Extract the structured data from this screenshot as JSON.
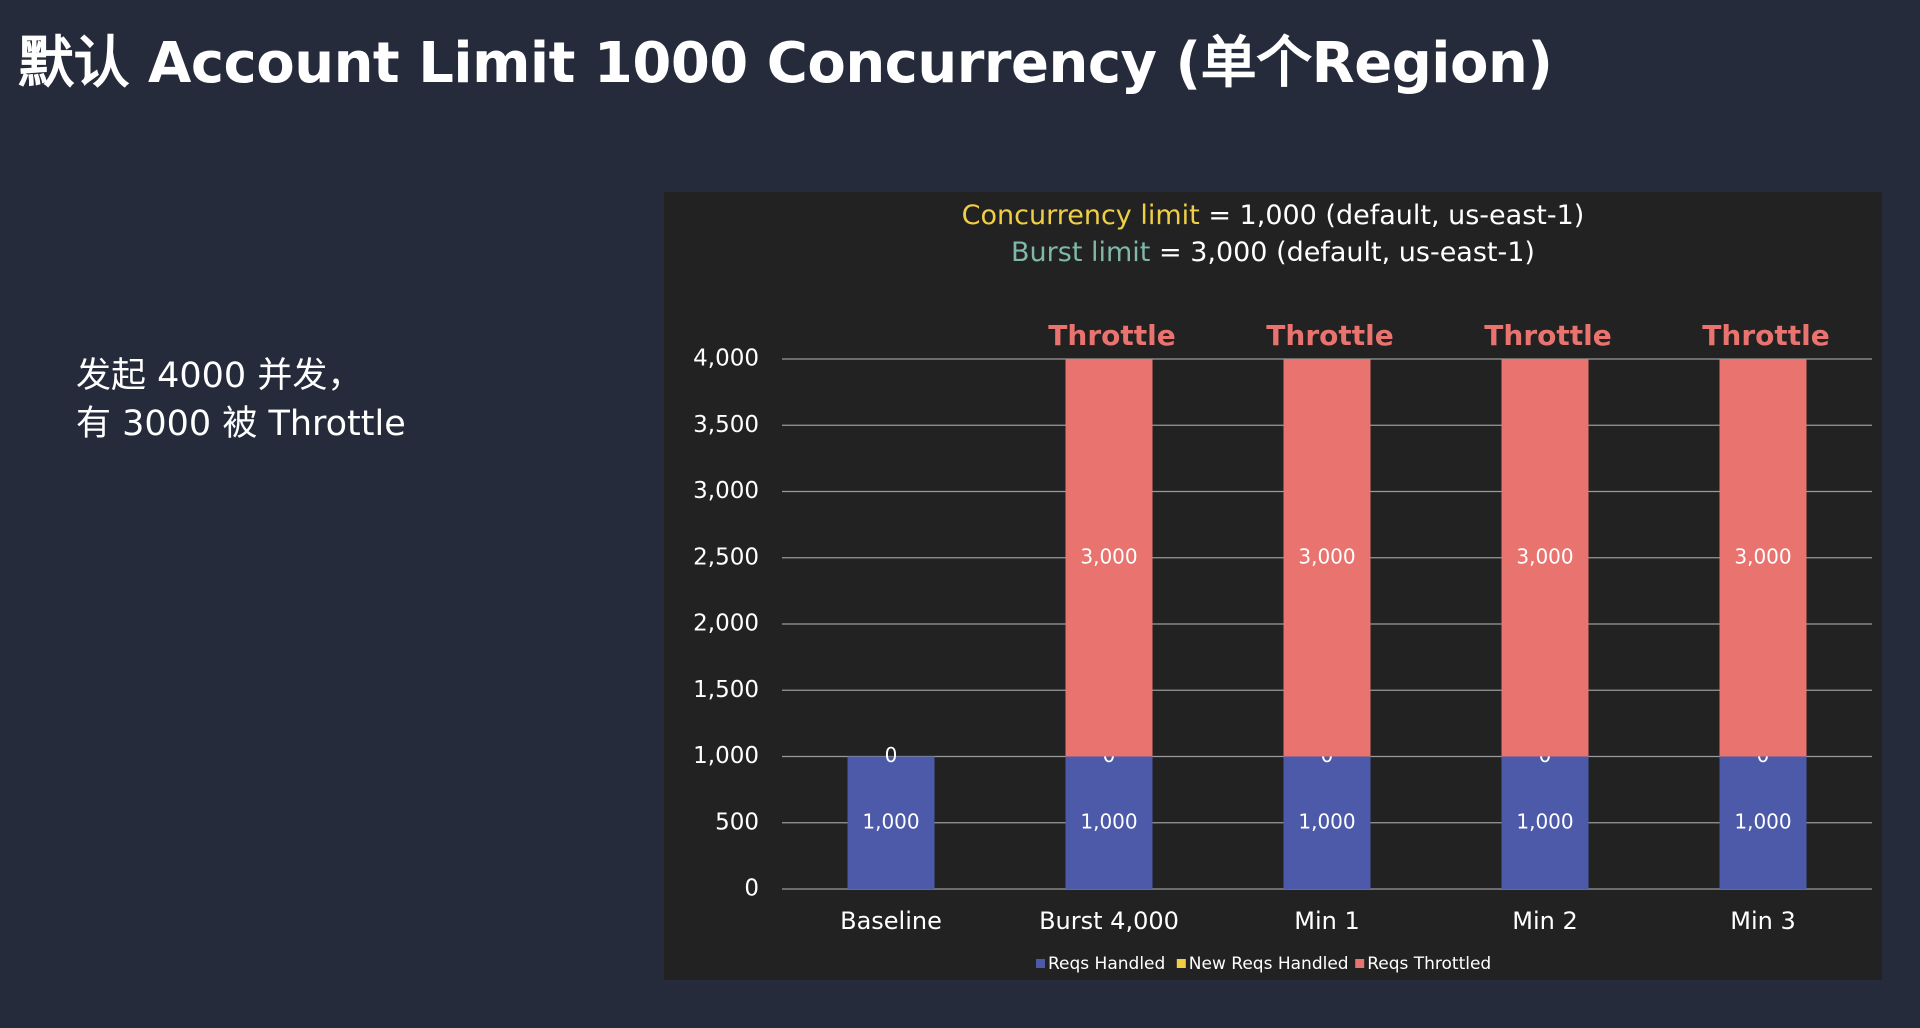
{
  "slide": {
    "title": "默认 Account Limit 1000 Concurrency (单个Region)",
    "bullet_line1": "发起 4000 并发，",
    "bullet_line2": "有 3000 被 Throttle"
  },
  "colors": {
    "background": "#252b3b",
    "panel": "#222222",
    "handled": "#4c5aa9",
    "new_handled": "#f0cf45",
    "throttled": "#e9736f",
    "concurrency_text": "#f0cf45",
    "burst_text": "#7fb7a8"
  },
  "chart_data": {
    "type": "bar",
    "stacked": true,
    "header_line1_highlight": "Concurrency limit",
    "header_line1_rest": " = 1,000 (default, us-east-1)",
    "header_line2_highlight": "Burst limit",
    "header_line2_rest": " = 3,000 (default, us-east-1)",
    "categories": [
      "Baseline",
      "Burst 4,000",
      "Min 1",
      "Min 2",
      "Min 3"
    ],
    "series": [
      {
        "name": "Reqs Handled",
        "color": "#4c5aa9",
        "values": [
          1000,
          1000,
          1000,
          1000,
          1000
        ],
        "labels": [
          "1,000",
          "1,000",
          "1,000",
          "1,000",
          "1,000"
        ]
      },
      {
        "name": "New Reqs Handled",
        "color": "#f0cf45",
        "values": [
          0,
          0,
          0,
          0,
          0
        ],
        "labels": [
          "0",
          "0",
          "0",
          "0",
          "0"
        ]
      },
      {
        "name": "Reqs Throttled",
        "color": "#e9736f",
        "values": [
          0,
          3000,
          3000,
          3000,
          3000
        ],
        "labels": [
          "",
          "3,000",
          "3,000",
          "3,000",
          "3,000"
        ]
      }
    ],
    "annotations": [
      "",
      "Throttle",
      "Throttle",
      "Throttle",
      "Throttle"
    ],
    "yticks": [
      "0",
      "500",
      "1,000",
      "1,500",
      "2,000",
      "2,500",
      "3,000",
      "3,500",
      "4,000"
    ],
    "ylim": [
      0,
      4000
    ],
    "grid": true,
    "legend_position": "bottom"
  }
}
